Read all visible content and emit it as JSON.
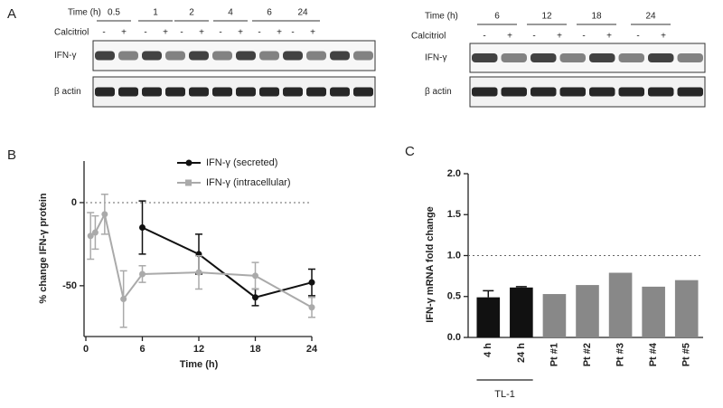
{
  "panels": {
    "a": {
      "label": "A",
      "blots": [
        {
          "time_header": "Time (h)",
          "times": [
            "0.5",
            "1",
            "2",
            "4",
            "6",
            "24"
          ],
          "treatment": "Calcitriol",
          "signs": [
            "-",
            "+"
          ],
          "rows": [
            "IFN-γ",
            "β actin"
          ]
        },
        {
          "time_header": "Time (h)",
          "times": [
            "6",
            "12",
            "18",
            "24"
          ],
          "treatment": "Calcitriol",
          "signs": [
            "-",
            "+"
          ],
          "rows": [
            "IFN-γ",
            "β actin"
          ]
        }
      ]
    },
    "b": {
      "label": "B"
    },
    "c": {
      "label": "C",
      "group_label": "TL-1"
    }
  },
  "chart_data": [
    {
      "type": "line",
      "x_label": "Time (h)",
      "y_label": "% change IFN-γ protein",
      "xlim": [
        0,
        24
      ],
      "ylim": [
        -80,
        25
      ],
      "xticks": [
        0,
        6,
        12,
        18,
        24
      ],
      "yticks": [
        -50,
        0
      ],
      "reference_line": 0,
      "legend": "upper right",
      "series": [
        {
          "name": "IFN-γ (secreted)",
          "color": "#111111",
          "x": [
            6,
            12,
            18,
            24
          ],
          "values": [
            -15,
            -31,
            -57,
            -48
          ],
          "errors": [
            16,
            12,
            5,
            8
          ]
        },
        {
          "name": "IFN-γ (intracellular)",
          "color": "#aaaaaa",
          "x": [
            0.5,
            1,
            2,
            4,
            6,
            12,
            18,
            24
          ],
          "values": [
            -20,
            -18,
            -7,
            -58,
            -43,
            -42,
            -44,
            -63
          ],
          "errors": [
            14,
            10,
            12,
            17,
            5,
            10,
            8,
            6
          ]
        }
      ]
    },
    {
      "type": "bar",
      "y_label": "IFN-γ mRNA fold change",
      "categories": [
        "4 h",
        "24 h",
        "Pt #1",
        "Pt #2",
        "Pt #3",
        "Pt #4",
        "Pt #5"
      ],
      "values": [
        0.49,
        0.61,
        0.53,
        0.64,
        0.79,
        0.62,
        0.7
      ],
      "errors": [
        0.08,
        0.01,
        null,
        null,
        null,
        null,
        null
      ],
      "colors": [
        "#111111",
        "#111111",
        "#888888",
        "#888888",
        "#888888",
        "#888888",
        "#888888"
      ],
      "ylim": [
        0,
        2
      ],
      "yticks": [
        {
          "value": 0,
          "label": "0.0"
        },
        0.5,
        {
          "value": 1,
          "label": "1.0"
        },
        1.5,
        {
          "value": 2,
          "label": "2.0"
        }
      ],
      "reference_line": 1
    }
  ]
}
